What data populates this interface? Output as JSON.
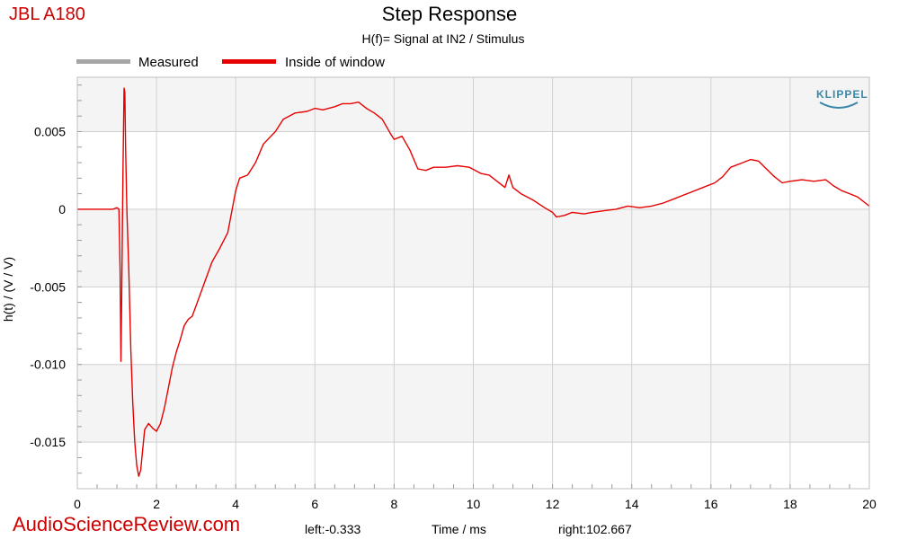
{
  "header": {
    "brand": "JBL A180",
    "title": "Step Response",
    "subtitle": "H(f)= Signal at IN2 / Stimulus"
  },
  "legend": [
    {
      "label": "Measured",
      "color": "#a6a6a6"
    },
    {
      "label": "Inside of window",
      "color": "#e60000"
    }
  ],
  "logo": "KLIPPEL",
  "footer": {
    "watermark": "AudioScienceReview.com",
    "left_marker": "left:-0.333",
    "xlabel": "Time / ms",
    "right_marker": "right:102.667"
  },
  "colors": {
    "brand": "#cc0000",
    "watermark": "#cc0000",
    "series": "#e60000",
    "band": "#f4f4f4",
    "grid": "#d0d0d0",
    "klippel": "#3a87a8"
  },
  "chart_data": {
    "type": "line",
    "title": "Step Response",
    "subtitle": "H(f)= Signal at IN2 / Stimulus",
    "xlabel": "Time / ms",
    "ylabel": "h(t) / (V / V)",
    "xlim": [
      0,
      20
    ],
    "ylim": [
      -0.018,
      0.0085
    ],
    "x_ticks": [
      0,
      2,
      4,
      6,
      8,
      10,
      12,
      14,
      16,
      18,
      20
    ],
    "y_ticks": [
      0.005,
      0,
      -0.005,
      -0.01,
      -0.015
    ],
    "y_tick_labels": [
      "0.005",
      "0",
      "-0.005",
      "-0.010",
      "-0.015"
    ],
    "grid": true,
    "legend_position": "top-left",
    "series": [
      {
        "name": "Inside of window",
        "color": "#e60000",
        "x": [
          0,
          0.5,
          0.9,
          1.0,
          1.05,
          1.08,
          1.1,
          1.12,
          1.15,
          1.18,
          1.2,
          1.22,
          1.25,
          1.3,
          1.35,
          1.4,
          1.45,
          1.5,
          1.55,
          1.6,
          1.65,
          1.7,
          1.8,
          1.9,
          2.0,
          2.1,
          2.2,
          2.3,
          2.4,
          2.5,
          2.6,
          2.7,
          2.8,
          2.9,
          3.0,
          3.2,
          3.4,
          3.6,
          3.8,
          4.0,
          4.1,
          4.3,
          4.5,
          4.7,
          5.0,
          5.2,
          5.5,
          5.8,
          6.0,
          6.2,
          6.5,
          6.7,
          6.9,
          7.1,
          7.3,
          7.5,
          7.7,
          7.9,
          8.0,
          8.2,
          8.4,
          8.6,
          8.8,
          9.0,
          9.3,
          9.6,
          9.9,
          10.2,
          10.4,
          10.6,
          10.8,
          10.9,
          11.0,
          11.2,
          11.5,
          11.8,
          12.0,
          12.1,
          12.3,
          12.5,
          12.8,
          13.0,
          13.3,
          13.6,
          13.9,
          14.2,
          14.5,
          14.8,
          15.1,
          15.4,
          15.8,
          16.1,
          16.3,
          16.5,
          16.8,
          17.0,
          17.2,
          17.4,
          17.6,
          17.8,
          18.0,
          18.3,
          18.6,
          18.9,
          19.1,
          19.3,
          19.5,
          19.7,
          19.9,
          20.0
        ],
        "y": [
          0.0,
          0.0,
          0.0,
          0.0001,
          0.0,
          -0.004,
          -0.0098,
          -0.006,
          0.002,
          0.0078,
          0.0075,
          0.004,
          0.0,
          -0.004,
          -0.009,
          -0.0125,
          -0.015,
          -0.0165,
          -0.0172,
          -0.0168,
          -0.0155,
          -0.0142,
          -0.0138,
          -0.0141,
          -0.0143,
          -0.0138,
          -0.0128,
          -0.0115,
          -0.0102,
          -0.0092,
          -0.0084,
          -0.0075,
          -0.0071,
          -0.0069,
          -0.0062,
          -0.0048,
          -0.0034,
          -0.0025,
          -0.0015,
          0.0012,
          0.002,
          0.0022,
          0.003,
          0.0042,
          0.005,
          0.0058,
          0.0062,
          0.0063,
          0.0065,
          0.0064,
          0.0066,
          0.0068,
          0.0068,
          0.0069,
          0.0065,
          0.0062,
          0.0058,
          0.0049,
          0.0045,
          0.0047,
          0.0038,
          0.0026,
          0.0025,
          0.0027,
          0.0027,
          0.0028,
          0.0027,
          0.0023,
          0.0022,
          0.0018,
          0.0014,
          0.0022,
          0.0014,
          0.001,
          0.0006,
          0.0001,
          -0.0002,
          -0.0005,
          -0.0004,
          -0.0002,
          -0.0003,
          -0.0002,
          -0.0001,
          0.0,
          0.0002,
          0.0001,
          0.0002,
          0.0004,
          0.0007,
          0.001,
          0.0014,
          0.0017,
          0.0021,
          0.0027,
          0.003,
          0.0032,
          0.0031,
          0.0026,
          0.0021,
          0.0017,
          0.0018,
          0.0019,
          0.0018,
          0.0019,
          0.0015,
          0.0012,
          0.001,
          0.0008,
          0.0004,
          0.0002
        ]
      }
    ]
  }
}
